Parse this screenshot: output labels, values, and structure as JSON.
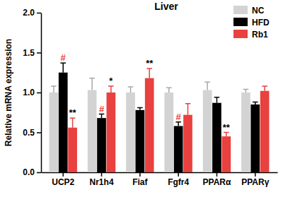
{
  "chart_data": {
    "type": "bar",
    "title": "Liver",
    "y_label": "Relative mRNA expression",
    "categories": [
      "UCP2",
      "Nr1h4",
      "Fiaf",
      "Fgfr4",
      "PPARα",
      "PPARγ"
    ],
    "series": [
      {
        "name": "NC",
        "color": "#d3d3d3",
        "values": [
          1.0,
          1.03,
          1.0,
          1.0,
          1.03,
          1.0
        ],
        "errors": [
          0.08,
          0.15,
          0.07,
          0.06,
          0.1,
          0.04
        ]
      },
      {
        "name": "HFD",
        "color": "#000000",
        "values": [
          1.25,
          0.68,
          0.78,
          0.58,
          0.87,
          0.85
        ],
        "errors": [
          0.12,
          0.05,
          0.03,
          0.05,
          0.07,
          0.03
        ]
      },
      {
        "name": "Rb1",
        "color": "#e8413f",
        "values": [
          0.56,
          1.0,
          1.18,
          0.72,
          0.45,
          1.02
        ],
        "errors": [
          0.12,
          0.08,
          0.12,
          0.14,
          0.05,
          0.06
        ]
      }
    ],
    "ylim": [
      0,
      2.0
    ],
    "yticks": [
      {
        "value": 0,
        "label": "0.0"
      },
      {
        "value": 0.5,
        "label": "0.5"
      },
      {
        "value": 1.0,
        "label": "1.0"
      },
      {
        "value": 1.5,
        "label": "1.5"
      },
      {
        "value": 2.0,
        "label": "2.0"
      }
    ],
    "legend": "upper right",
    "annotations": [
      {
        "text": "#",
        "category": "UCP2",
        "series": "HFD",
        "color": "#e8413f"
      },
      {
        "text": "**",
        "category": "UCP2",
        "series": "Rb1",
        "color": "#000000"
      },
      {
        "text": "#",
        "category": "Nr1h4",
        "series": "HFD",
        "color": "#e8413f"
      },
      {
        "text": "*",
        "category": "Nr1h4",
        "series": "Rb1",
        "color": "#000000"
      },
      {
        "text": "**",
        "category": "Fiaf",
        "series": "Rb1",
        "color": "#000000"
      },
      {
        "text": "#",
        "category": "Fgfr4",
        "series": "HFD",
        "color": "#e8413f"
      },
      {
        "text": "**",
        "category": "PPARα",
        "series": "Rb1",
        "color": "#000000"
      }
    ]
  }
}
